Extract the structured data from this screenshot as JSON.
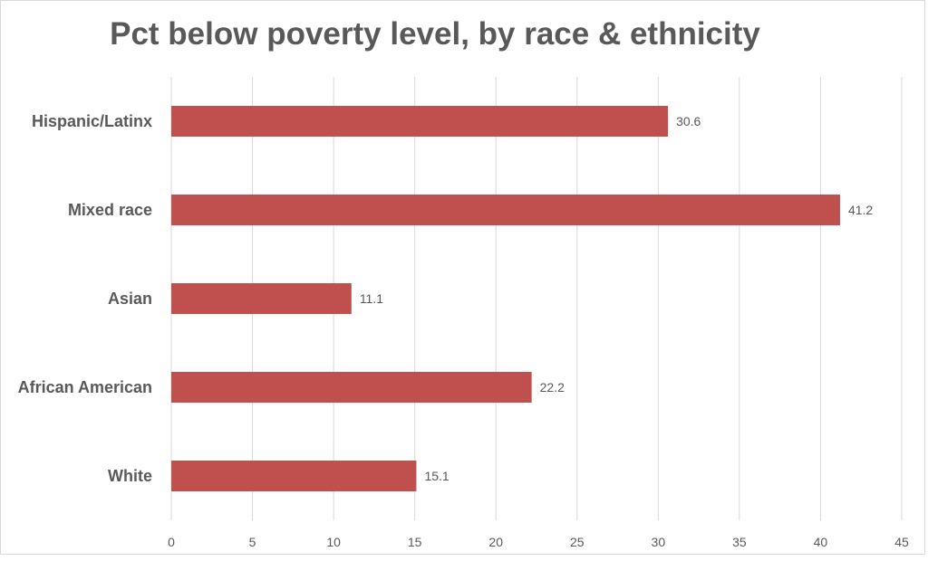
{
  "chart_data": {
    "type": "bar",
    "orientation": "horizontal",
    "title": "Pct below poverty level, by race & ethnicity",
    "categories": [
      "Hispanic/Latinx",
      "Mixed race",
      "Asian",
      "African American",
      "White"
    ],
    "values": [
      30.6,
      41.2,
      11.1,
      22.2,
      15.1
    ],
    "data_labels": [
      "30.6",
      "41.2",
      "11.1",
      "22.2",
      "15.1"
    ],
    "xlim": [
      0,
      45
    ],
    "xticks": [
      0,
      5,
      10,
      15,
      20,
      25,
      30,
      35,
      40,
      45
    ],
    "xlabel": "",
    "ylabel": "",
    "grid": "vertical",
    "legend": "none",
    "colors": {
      "bar": "#C0504D",
      "grid": "#d9d9d9",
      "text": "#595959"
    }
  }
}
